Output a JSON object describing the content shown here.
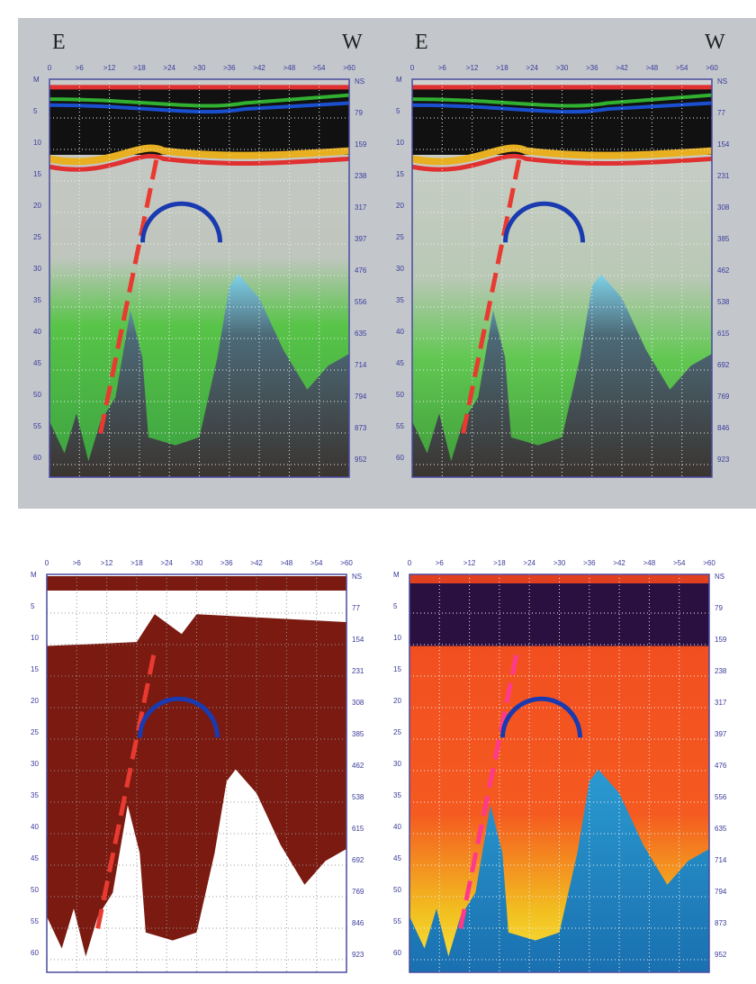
{
  "panels": [
    {
      "header_left": "E",
      "header_right": "W",
      "top_ticks": [
        "0",
        ">6",
        ">12",
        ">18",
        ">24",
        ">30",
        ">36",
        ">42",
        ">48",
        ">54",
        ">60"
      ],
      "left_ticks": [
        "M",
        "5",
        "10",
        "15",
        "20",
        "25",
        "30",
        "35",
        "40",
        "45",
        "50",
        "55",
        "60"
      ],
      "right_ticks": [
        "NS",
        "79",
        "159",
        "238",
        "317",
        "397",
        "476",
        "556",
        "635",
        "714",
        "794",
        "873",
        "952"
      ]
    },
    {
      "header_left": "E",
      "header_right": "W",
      "top_ticks": [
        "0",
        ">6",
        ">12",
        ">18",
        ">24",
        ">30",
        ">36",
        ">42",
        ">48",
        ">54",
        ">60"
      ],
      "left_ticks": [
        "M",
        "5",
        "10",
        "15",
        "20",
        "25",
        "30",
        "35",
        "40",
        "45",
        "50",
        "55",
        "60"
      ],
      "right_ticks": [
        "NS",
        "77",
        "154",
        "231",
        "308",
        "385",
        "462",
        "538",
        "615",
        "692",
        "769",
        "846",
        "923"
      ]
    },
    {
      "top_ticks": [
        "0",
        ">6",
        ">12",
        ">18",
        ">24",
        ">30",
        ">36",
        ">42",
        ">48",
        ">54",
        ">60"
      ],
      "left_ticks": [
        "M",
        "5",
        "10",
        "15",
        "20",
        "25",
        "30",
        "35",
        "40",
        "45",
        "50",
        "55",
        "60"
      ],
      "right_ticks": [
        "NS",
        "77",
        "154",
        "231",
        "308",
        "385",
        "462",
        "538",
        "615",
        "692",
        "769",
        "846",
        "923"
      ]
    },
    {
      "top_ticks": [
        "0",
        ">6",
        ">12",
        ">18",
        ">24",
        ">30",
        ">36",
        ">42",
        ">48",
        ">54",
        ">60"
      ],
      "left_ticks": [
        "M",
        "5",
        "10",
        "15",
        "20",
        "25",
        "30",
        "35",
        "40",
        "45",
        "50",
        "55",
        "60"
      ],
      "right_ticks": [
        "NS",
        "79",
        "159",
        "238",
        "317",
        "397",
        "476",
        "556",
        "635",
        "714",
        "794",
        "873",
        "952"
      ]
    }
  ]
}
